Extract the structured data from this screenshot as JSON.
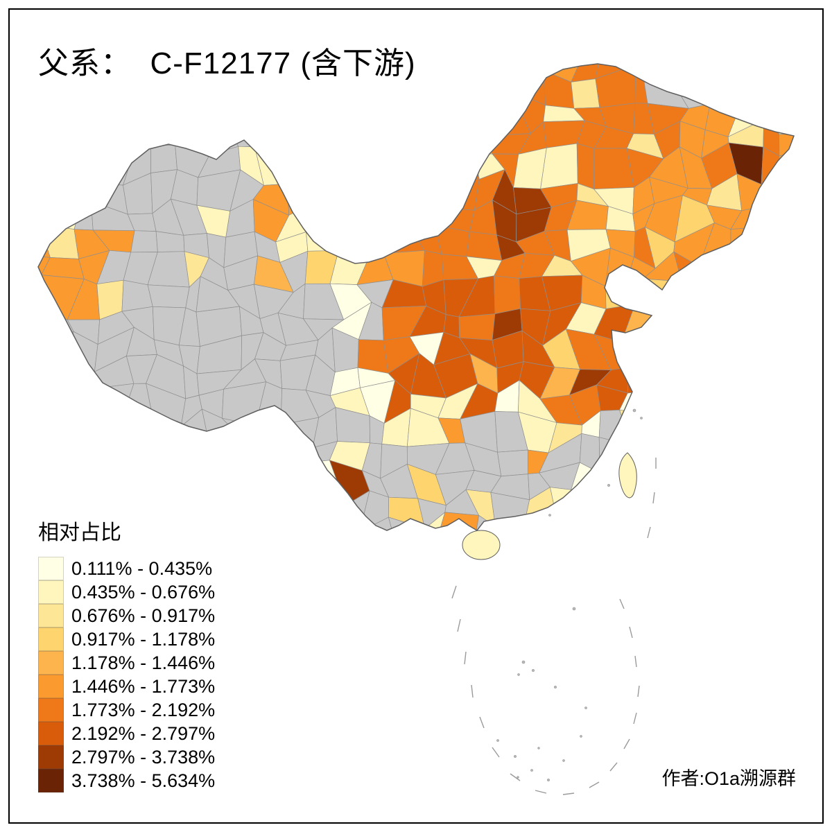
{
  "title": "父系：  C-F12177 (含下游)",
  "legend": {
    "title": "相对占比",
    "items": [
      {
        "label": "0.111% - 0.435%",
        "color": "#FFFFE5"
      },
      {
        "label": "0.435% - 0.676%",
        "color": "#FFF6BD"
      },
      {
        "label": "0.676% - 0.917%",
        "color": "#FEE697"
      },
      {
        "label": "0.917% - 1.178%",
        "color": "#FED46E"
      },
      {
        "label": "1.178% - 1.446%",
        "color": "#FEB44C"
      },
      {
        "label": "1.446% - 1.773%",
        "color": "#FB9A2E"
      },
      {
        "label": "1.773% - 2.192%",
        "color": "#EF7818"
      },
      {
        "label": "2.192% - 2.797%",
        "color": "#D85C0A"
      },
      {
        "label": "2.797% - 3.738%",
        "color": "#9E3A04"
      },
      {
        "label": "3.738% - 5.634%",
        "color": "#6B2305"
      }
    ]
  },
  "attribution": "作者:O1a溯源群",
  "map": {
    "name": "china-prefecture-choropleth",
    "no_data_color": "#C8C8C8",
    "boundary_color": "#5F5F5F",
    "cell_border_color": "#8F8F8F",
    "ocean_color": "#FFFFFF"
  }
}
